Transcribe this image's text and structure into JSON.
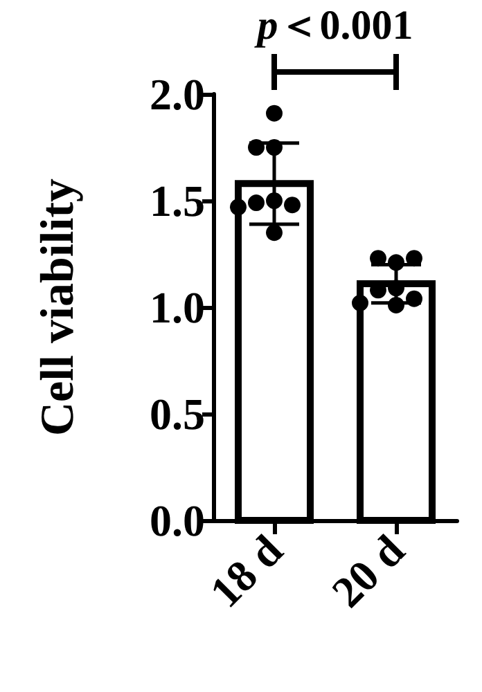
{
  "chart_data": {
    "type": "bar",
    "ylabel": "Cell viability",
    "categories": [
      "18 d",
      "20 d"
    ],
    "series": [
      {
        "color": "#ffffff",
        "values": [
          1.58,
          1.11
        ],
        "errors": [
          0.19,
          0.09
        ]
      },
      {
        "type": "scatter",
        "color": "#000000",
        "x": [
          "18 d",
          "18 d",
          "18 d",
          "18 d",
          "18 d",
          "18 d",
          "18 d",
          "18 d",
          "20 d",
          "20 d",
          "20 d",
          "20 d",
          "20 d",
          "20 d",
          "20 d",
          "20 d"
        ],
        "values": [
          1.91,
          1.75,
          1.75,
          1.5,
          1.49,
          1.48,
          1.47,
          1.35,
          1.21,
          1.23,
          1.23,
          1.09,
          1.08,
          1.04,
          1.02,
          1.01
        ]
      }
    ],
    "ylim": [
      0,
      2
    ],
    "yticks": [
      {
        "value": 0,
        "label": "0.0"
      },
      {
        "value": 0.5,
        "label": "0.5"
      },
      {
        "value": 1,
        "label": "1.0"
      },
      {
        "value": 1.5,
        "label": "1.5"
      },
      {
        "value": 2,
        "label": "2.0"
      }
    ],
    "grid": false,
    "marker": "circle",
    "annotations": [
      "p＜0.001"
    ]
  }
}
